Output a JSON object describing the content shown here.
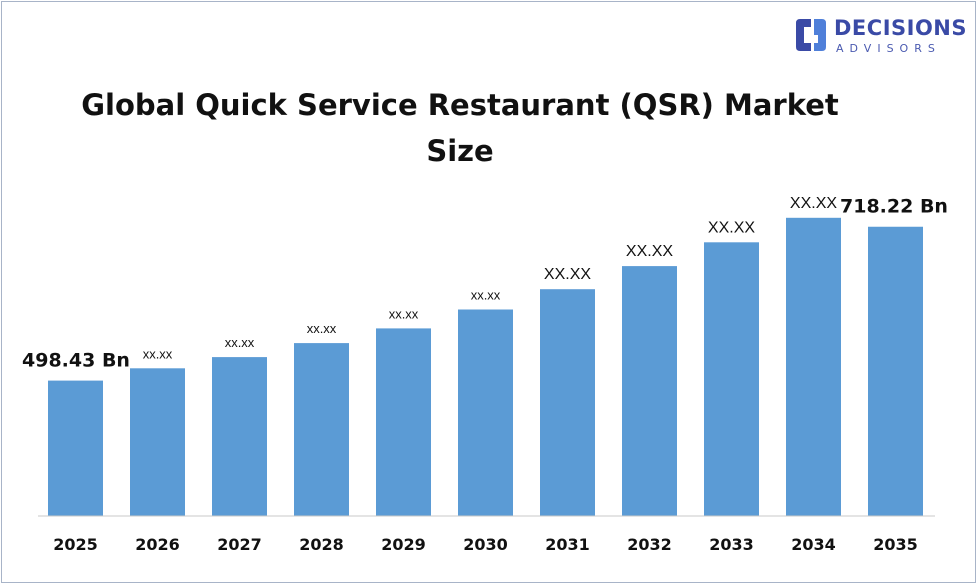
{
  "logo": {
    "word1": "DECISIONS",
    "word2": "ADVISORS",
    "color": "#3a4aa6"
  },
  "chart_data": {
    "type": "bar",
    "title": "Global Quick Service Restaurant (QSR) Market Size",
    "categories": [
      "2025",
      "2026",
      "2027",
      "2028",
      "2029",
      "2030",
      "2031",
      "2032",
      "2033",
      "2034",
      "2035"
    ],
    "values": [
      498.43,
      516,
      532,
      552,
      573,
      600,
      629,
      662,
      696,
      731,
      718.22
    ],
    "labels": [
      "498.43 Bn",
      "xx.xx",
      "xx.xx",
      "xx.xx",
      "xx.xx",
      "xx.xx",
      "XX.XX",
      "XX.XX",
      "XX.XX",
      "XX.XX",
      "718.22 Bn"
    ],
    "xlabel": "",
    "ylabel": "",
    "grid": false,
    "legend": "none",
    "bar_color": "#5b9bd5"
  }
}
